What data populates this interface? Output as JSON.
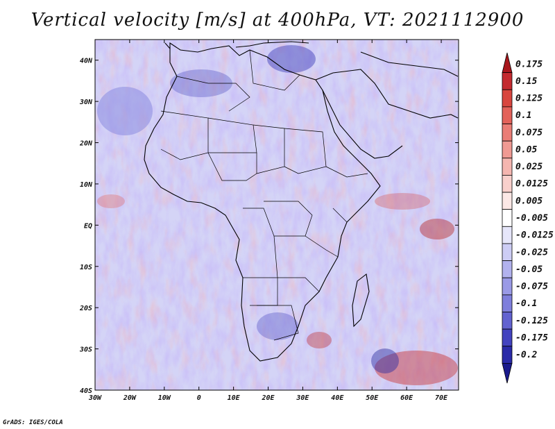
{
  "title": "Vertical velocity [m/s] at 400hPa, VT: 2021112900",
  "credit": "GrADS: IGES/COLA",
  "map": {
    "lon_range": [
      -30,
      75
    ],
    "lat_range": [
      -40,
      45
    ],
    "lon_ticks": [
      "30W",
      "20W",
      "10W",
      "0",
      "10E",
      "20E",
      "30E",
      "40E",
      "50E",
      "60E",
      "70E"
    ],
    "lat_ticks": [
      "40N",
      "30N",
      "20N",
      "10N",
      "EQ",
      "10S",
      "20S",
      "30S",
      "40S"
    ]
  },
  "colorbar": {
    "labels": [
      "0.175",
      "0.15",
      "0.125",
      "0.1",
      "0.075",
      "0.05",
      "0.025",
      "0.0125",
      "0.005",
      "-0.005",
      "-0.0125",
      "-0.025",
      "-0.05",
      "-0.075",
      "-0.1",
      "-0.125",
      "-0.175",
      "-0.2"
    ],
    "colors": [
      "#a8161c",
      "#c42a2f",
      "#d8463f",
      "#e3625a",
      "#ea7d76",
      "#f09a93",
      "#f5b6b0",
      "#f9d0cc",
      "#fce8e6",
      "#ffffff",
      "#e6e6fa",
      "#cdcdf5",
      "#b2b2ee",
      "#9a9ae6",
      "#7f7fdc",
      "#6262d0",
      "#4343bf",
      "#2a2aa8",
      "#1a1a8c"
    ]
  }
}
